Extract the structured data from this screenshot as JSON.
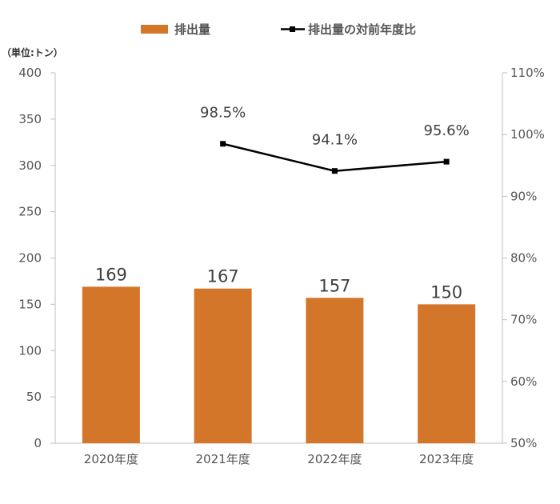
{
  "chart_data": {
    "type": "bar",
    "unit_label": "（単位:トン）",
    "categories": [
      "2020年度",
      "2021年度",
      "2022年度",
      "2023年度"
    ],
    "y_left": {
      "min": 0,
      "max": 400,
      "ticks": [
        "0",
        "50",
        "100",
        "150",
        "200",
        "250",
        "300",
        "350",
        "400"
      ]
    },
    "y_right": {
      "min": 50,
      "max": 110,
      "ticks": [
        "50%",
        "60%",
        "70%",
        "80%",
        "90%",
        "100%",
        "110%"
      ]
    },
    "series": [
      {
        "name": "排出量",
        "type": "bar",
        "axis": "left",
        "color": "#D4762A",
        "values": [
          169,
          167,
          157,
          150
        ],
        "labels": [
          "169",
          "167",
          "157",
          "150"
        ]
      },
      {
        "name": "排出量の対前年度比",
        "type": "line",
        "axis": "right",
        "color": "#000000",
        "values": [
          null,
          98.5,
          94.1,
          95.6
        ],
        "labels": [
          "",
          "98.5%",
          "94.1%",
          "95.6%"
        ]
      }
    ],
    "legend_position": "top",
    "grid": false
  }
}
